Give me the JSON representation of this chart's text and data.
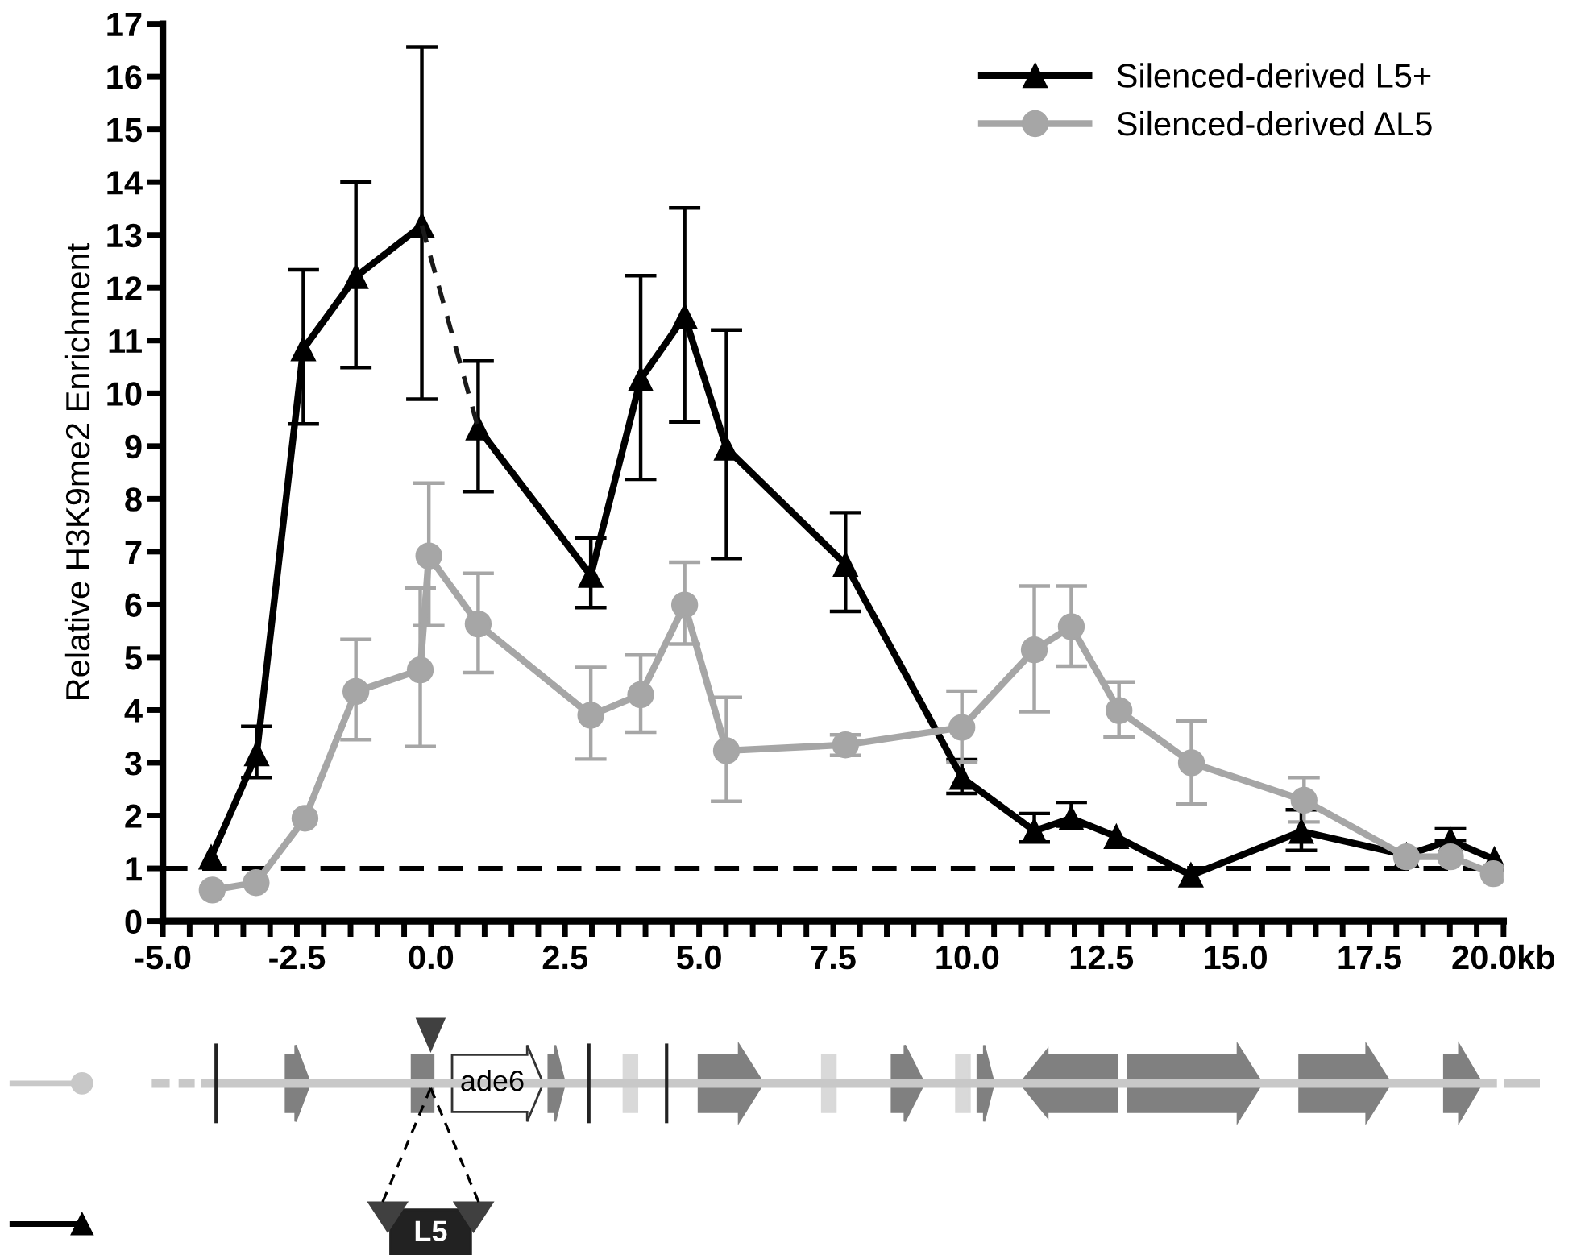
{
  "chart_data": {
    "type": "line",
    "ylabel": "Relative H3K9me2 Enrichment",
    "series": [
      {
        "name": "Silenced-derived L5+",
        "color": "#000000",
        "marker": "triangle",
        "x": [
          -4.1,
          -3.25,
          -2.38,
          -1.4,
          -0.17,
          0.35,
          0.88,
          2.98,
          3.91,
          4.73,
          5.51,
          7.73,
          9.9,
          11.25,
          11.94,
          12.78,
          14.17,
          16.23,
          18.19,
          19.01,
          19.83
        ],
        "values": [
          1.21,
          3.17,
          10.84,
          12.21,
          13.18,
          null,
          9.34,
          6.55,
          10.27,
          11.46,
          8.96,
          6.76,
          2.72,
          1.71,
          1.95,
          1.6,
          0.87,
          1.7,
          1.25,
          1.53,
          1.17
        ],
        "errors": [
          null,
          [
            2.72,
            3.69
          ],
          [
            9.42,
            12.34
          ],
          [
            10.49,
            14.0
          ],
          [
            9.89,
            16.56
          ],
          null,
          [
            8.14,
            10.61
          ],
          [
            5.94,
            7.26
          ],
          [
            8.37,
            12.23
          ],
          [
            9.46,
            13.51
          ],
          [
            6.87,
            11.2
          ],
          [
            5.87,
            7.74
          ],
          [
            2.42,
            3.06
          ],
          [
            1.5,
            2.04
          ],
          [
            1.8,
            2.25
          ],
          null,
          null,
          [
            1.34,
            2.11
          ],
          null,
          [
            1.53,
            1.75
          ],
          null
        ]
      },
      {
        "name": "Silenced-derived ΔL5",
        "color": "#a6a6a6",
        "marker": "circle",
        "x": [
          -4.08,
          -3.26,
          -2.35,
          -1.4,
          -0.2,
          -0.04,
          0.88,
          2.98,
          3.91,
          4.73,
          5.51,
          7.73,
          9.9,
          11.25,
          11.94,
          12.83,
          14.18,
          16.28,
          18.19,
          19.01,
          19.81
        ],
        "values": [
          0.59,
          0.73,
          1.95,
          4.35,
          4.76,
          6.92,
          5.63,
          3.9,
          4.29,
          5.99,
          3.23,
          3.34,
          3.67,
          5.14,
          5.58,
          3.99,
          3.0,
          2.29,
          1.22,
          1.22,
          0.9
        ],
        "errors": [
          null,
          null,
          null,
          [
            3.44,
            5.34
          ],
          [
            3.31,
            6.31
          ],
          [
            5.6,
            8.3
          ],
          [
            4.71,
            6.59
          ],
          [
            3.07,
            4.81
          ],
          [
            3.58,
            5.04
          ],
          [
            5.25,
            6.8
          ],
          [
            2.27,
            4.24
          ],
          [
            3.14,
            3.53
          ],
          [
            3.02,
            4.36
          ],
          [
            3.97,
            6.35
          ],
          [
            4.83,
            6.35
          ],
          [
            3.49,
            4.53
          ],
          [
            2.22,
            3.79
          ],
          [
            1.88,
            2.72
          ],
          null,
          null,
          null
        ]
      },
      {
        "type": "line",
        "color": "#1a1a1a",
        "line_style": "dashed",
        "marker": "none",
        "x": [
          -0.17,
          0.88
        ],
        "values": [
          13.18,
          9.34
        ]
      }
    ],
    "ref_lines": [
      {
        "axis": "y",
        "value": 1,
        "color": "#000000",
        "line_style": "dashed"
      }
    ],
    "xlim": [
      -5,
      20
    ],
    "ylim": [
      0,
      17
    ],
    "xticks": [
      {
        "value": -5,
        "label": "-5.0"
      },
      {
        "value": -4.5,
        "label": null
      },
      {
        "value": -4,
        "label": null
      },
      {
        "value": -3.5,
        "label": null
      },
      {
        "value": -3,
        "label": null
      },
      {
        "value": -2.5,
        "label": "-2.5"
      },
      {
        "value": -2,
        "label": null
      },
      {
        "value": -1.5,
        "label": null
      },
      {
        "value": -1,
        "label": null
      },
      {
        "value": -0.5,
        "label": null
      },
      {
        "value": 0,
        "label": "0.0"
      },
      {
        "value": 0.5,
        "label": null
      },
      {
        "value": 1,
        "label": null
      },
      {
        "value": 1.5,
        "label": null
      },
      {
        "value": 2,
        "label": null
      },
      {
        "value": 2.5,
        "label": "2.5"
      },
      {
        "value": 3,
        "label": null
      },
      {
        "value": 3.5,
        "label": null
      },
      {
        "value": 4,
        "label": null
      },
      {
        "value": 4.5,
        "label": null
      },
      {
        "value": 5,
        "label": "5.0"
      },
      {
        "value": 5.5,
        "label": null
      },
      {
        "value": 6,
        "label": null
      },
      {
        "value": 6.5,
        "label": null
      },
      {
        "value": 7,
        "label": null
      },
      {
        "value": 7.5,
        "label": "7.5"
      },
      {
        "value": 8,
        "label": null
      },
      {
        "value": 8.5,
        "label": null
      },
      {
        "value": 9,
        "label": null
      },
      {
        "value": 9.5,
        "label": null
      },
      {
        "value": 10,
        "label": "10.0"
      },
      {
        "value": 10.5,
        "label": null
      },
      {
        "value": 11,
        "label": null
      },
      {
        "value": 11.5,
        "label": null
      },
      {
        "value": 12,
        "label": null
      },
      {
        "value": 12.5,
        "label": "12.5"
      },
      {
        "value": 13,
        "label": null
      },
      {
        "value": 13.5,
        "label": null
      },
      {
        "value": 14,
        "label": null
      },
      {
        "value": 14.5,
        "label": null
      },
      {
        "value": 15,
        "label": "15.0"
      },
      {
        "value": 15.5,
        "label": null
      },
      {
        "value": 16,
        "label": null
      },
      {
        "value": 16.5,
        "label": null
      },
      {
        "value": 17,
        "label": null
      },
      {
        "value": 17.5,
        "label": "17.5"
      },
      {
        "value": 18,
        "label": null
      },
      {
        "value": 18.5,
        "label": null
      },
      {
        "value": 19,
        "label": null
      },
      {
        "value": 19.5,
        "label": null
      },
      {
        "value": 20,
        "label": "20.0kb"
      }
    ],
    "yticks": [
      0,
      1,
      2,
      3,
      4,
      5,
      6,
      7,
      8,
      9,
      10,
      11,
      12,
      13,
      14,
      15,
      16,
      17
    ],
    "annotations": [
      "ade6",
      "L5"
    ],
    "grid": false,
    "legend": "top right"
  }
}
